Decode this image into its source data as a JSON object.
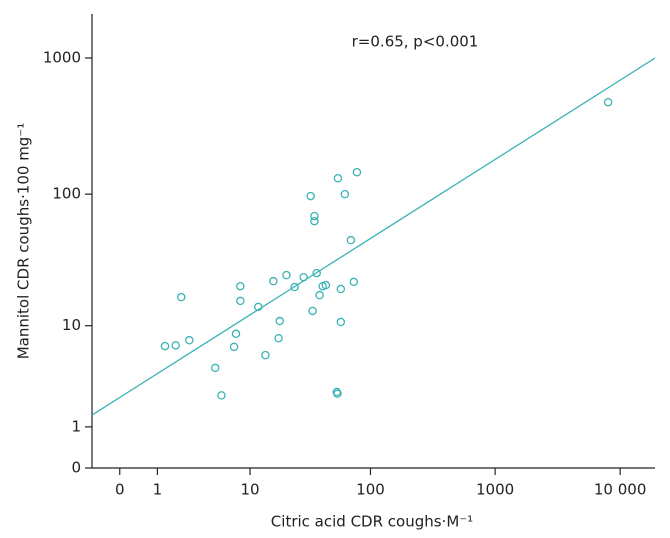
{
  "chart_data": {
    "type": "scatter",
    "annotation": "r=0.65, p<0.001",
    "xlabel": "Citric acid CDR coughs·M⁻¹",
    "ylabel": "Mannitol CDR coughs·100 mg⁻¹",
    "xscale": "log1p",
    "yscale": "log1p",
    "xlim": [
      -0.4,
      19000
    ],
    "ylim": [
      0,
      2100
    ],
    "xticks": [
      0,
      1,
      10,
      100,
      1000,
      {
        "value": 10000,
        "label": "10 000"
      }
    ],
    "yticks": [
      0,
      1,
      10,
      100,
      1000
    ],
    "color": "#3bb3b3",
    "x": [
      1.3,
      1.8,
      2.1,
      2.6,
      4.8,
      5.5,
      7.2,
      7.5,
      8.2,
      8.2,
      11.8,
      13.6,
      15.9,
      17.6,
      18,
      20.5,
      24,
      28.5,
      32.6,
      33.8,
      35,
      35,
      36.5,
      38.6,
      40.9,
      43.4,
      53.3,
      54,
      54.5,
      57.5,
      57.5,
      62,
      69.4,
      73.3,
      77.7,
      8016
    ],
    "y": [
      6.8,
      6.9,
      16.8,
      7.6,
      4.4,
      2.4,
      6.7,
      8.6,
      20.4,
      15.7,
      14.1,
      5.7,
      22.3,
      7.9,
      10.9,
      24.8,
      20.1,
      23.9,
      96.7,
      13.1,
      68.7,
      63,
      25.7,
      17.4,
      20.4,
      20.8,
      2.6,
      2.5,
      131,
      19.4,
      10.7,
      100,
      45.5,
      22,
      145,
      474
    ],
    "fit_line": {
      "x": [
        -0.4,
        19000
      ],
      "y": [
        1.44,
        999
      ]
    }
  }
}
